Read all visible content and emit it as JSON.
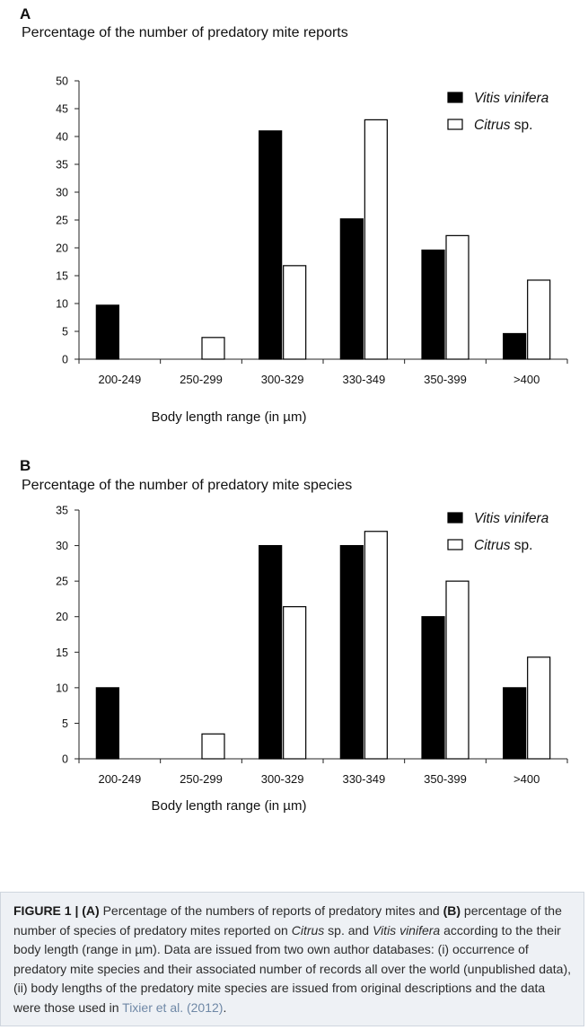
{
  "panel_a": {
    "letter": "A",
    "title": "Percentage of the number of predatory mite reports"
  },
  "panel_b": {
    "letter": "B",
    "title": "Percentage of the number of predatory mite species"
  },
  "chart_data": [
    {
      "type": "bar",
      "title": "Percentage of the number of predatory mite reports",
      "xlabel": "Body length range (in µm)",
      "ylabel": "",
      "categories": [
        "200-249",
        "250-299",
        "300-329",
        "330-349",
        "350-399",
        ">400"
      ],
      "series": [
        {
          "name": "Vitis vinifera",
          "fill": "#000000",
          "values": [
            9.7,
            0,
            41,
            25.2,
            19.6,
            4.6
          ]
        },
        {
          "name": "Citrus sp.",
          "fill": "#ffffff",
          "values": [
            0,
            3.9,
            16.8,
            43,
            22.2,
            14.2
          ]
        }
      ],
      "legend": [
        {
          "italic": "Vitis vinifera",
          "rest": ""
        },
        {
          "italic": "Citrus",
          "rest": " sp."
        }
      ],
      "ylim": [
        0,
        50
      ],
      "yticks": [
        0,
        5,
        10,
        15,
        20,
        25,
        30,
        35,
        40,
        45,
        50
      ],
      "grid": false,
      "legend_position": "top-right"
    },
    {
      "type": "bar",
      "title": "Percentage of the number of predatory mite species",
      "xlabel": "Body length range (in µm)",
      "ylabel": "",
      "categories": [
        "200-249",
        "250-299",
        "300-329",
        "330-349",
        "350-399",
        ">400"
      ],
      "series": [
        {
          "name": "Vitis vinifera",
          "fill": "#000000",
          "values": [
            10,
            0,
            30,
            30,
            20,
            10
          ]
        },
        {
          "name": "Citrus sp.",
          "fill": "#ffffff",
          "values": [
            0,
            3.5,
            21.4,
            32,
            25,
            14.3
          ]
        }
      ],
      "legend": [
        {
          "italic": "Vitis vinifera",
          "rest": ""
        },
        {
          "italic": "Citrus",
          "rest": " sp."
        }
      ],
      "ylim": [
        0,
        35
      ],
      "yticks": [
        0,
        5,
        10,
        15,
        20,
        25,
        30,
        35
      ],
      "grid": false,
      "legend_position": "top-right"
    }
  ],
  "caption": {
    "label": "FIGURE 1 |",
    "a_tag": "(A)",
    "t1": " Percentage of the numbers of reports of predatory mites and ",
    "b_tag": "(B)",
    "t2": " percentage of the number of species of predatory mites reported on ",
    "citrus": "Citrus",
    "t3": " sp. and ",
    "vitis": "Vitis vinifera",
    "t4": " according to the their body length (range in µm). Data are issued from two own author databases: (i) occurrence of predatory mite species and their associated number of records all over the world (unpublished data), (ii) body lengths of the predatory mite species are issued from original descriptions and the data were those used in ",
    "ref": "Tixier et al. (2012)",
    "t5": "."
  }
}
